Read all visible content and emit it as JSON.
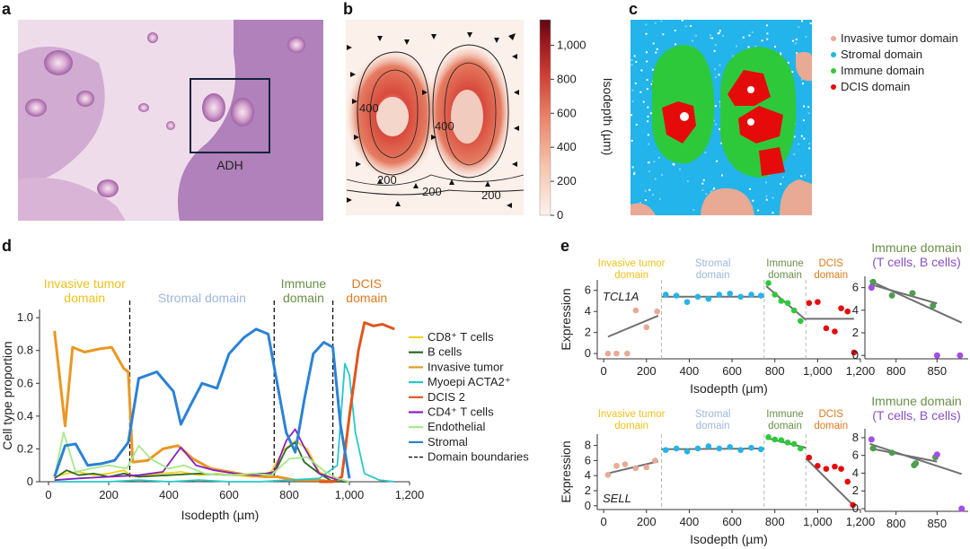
{
  "panel_labels": {
    "a": "a",
    "b": "b",
    "c": "c",
    "d": "d",
    "e": "e"
  },
  "panel_a": {
    "roi_label": "ADH"
  },
  "panel_b": {
    "colorbar_label": "Isodepth (µm)",
    "colorbar_ticks": [
      "1,000",
      "800",
      "600",
      "400",
      "200",
      "0"
    ],
    "contour_labels": [
      "200",
      "400",
      "200",
      "400",
      "200"
    ],
    "colorscale": [
      "#fbe8df",
      "#f4b6a0",
      "#e4705a",
      "#c4342c",
      "#8b1a1a",
      "#5a0f12"
    ]
  },
  "panel_c": {
    "legend": [
      {
        "label": "Invasive tumor domain",
        "color": "#e8a995"
      },
      {
        "label": "Stromal domain",
        "color": "#22b4ea"
      },
      {
        "label": "Immune domain",
        "color": "#2ec93a"
      },
      {
        "label": "DCIS domain",
        "color": "#e60b0b"
      }
    ]
  },
  "chart_data": [
    {
      "type": "line",
      "id": "d",
      "xlabel": "Isodepth (µm)",
      "ylabel": "Cell type proportion",
      "xlim": [
        -30,
        1200
      ],
      "ylim": [
        0,
        1.05
      ],
      "xticks": [
        "0",
        "200",
        "400",
        "600",
        "800",
        "1,000",
        "1,200"
      ],
      "yticks": [
        "0",
        "0.2",
        "0.4",
        "0.6",
        "0.8",
        "1.0"
      ],
      "domain_boundaries": [
        270,
        750,
        945
      ],
      "domains": [
        {
          "label": [
            "Invasive tumor",
            "domain"
          ],
          "color": "#efc21a"
        },
        {
          "label": [
            "Stromal domain"
          ],
          "color": "#9db7dc"
        },
        {
          "label": [
            "Immune",
            "domain"
          ],
          "color": "#6a8f47"
        },
        {
          "label": [
            "DCIS",
            "domain"
          ],
          "color": "#e07a1c"
        }
      ],
      "series": [
        {
          "name": "CD8⁺ T cells",
          "color": "#f3d117",
          "x": [
            20,
            60,
            100,
            150,
            200,
            250,
            280,
            320,
            380,
            440,
            500,
            560,
            620,
            680,
            740,
            780,
            820,
            860,
            900,
            945,
            1000
          ],
          "y": [
            0.03,
            0.05,
            0.06,
            0.04,
            0.05,
            0.07,
            0.03,
            0.04,
            0.05,
            0.06,
            0.04,
            0.05,
            0.04,
            0.03,
            0.06,
            0.19,
            0.25,
            0.2,
            0.06,
            0.02,
            0.0
          ]
        },
        {
          "name": "B cells",
          "color": "#2c6b23",
          "x": [
            20,
            60,
            100,
            150,
            200,
            250,
            300,
            400,
            500,
            600,
            700,
            750,
            790,
            820,
            850,
            900,
            945,
            1000
          ],
          "y": [
            0.02,
            0.07,
            0.04,
            0.05,
            0.03,
            0.05,
            0.03,
            0.04,
            0.05,
            0.04,
            0.05,
            0.05,
            0.2,
            0.24,
            0.12,
            0.05,
            0.0,
            0.0
          ]
        },
        {
          "name": "Invasive tumor",
          "color": "#eb9722",
          "x": [
            20,
            55,
            80,
            120,
            170,
            210,
            250,
            265,
            280,
            330,
            380,
            430,
            480,
            540,
            600,
            660,
            720,
            760,
            820,
            900,
            945
          ],
          "y": [
            0.92,
            0.34,
            0.82,
            0.79,
            0.81,
            0.82,
            0.69,
            0.67,
            0.12,
            0.13,
            0.2,
            0.22,
            0.14,
            0.08,
            0.06,
            0.04,
            0.03,
            0.03,
            0.01,
            0.01,
            0.0
          ]
        },
        {
          "name": "Myoepi ACTA2⁺",
          "color": "#26c8c8",
          "x": [
            20,
            100,
            200,
            300,
            400,
            500,
            600,
            700,
            800,
            900,
            960,
            985,
            1000,
            1020,
            1050,
            1100,
            1150
          ],
          "y": [
            0.0,
            0.0,
            0.0,
            0.01,
            0.0,
            0.01,
            0.0,
            0.0,
            0.01,
            0.02,
            0.1,
            0.72,
            0.65,
            0.3,
            0.05,
            0.01,
            0.0
          ]
        },
        {
          "name": "DCIS 2",
          "color": "#e0561b",
          "x": [
            900,
            945,
            975,
            1000,
            1030,
            1050,
            1080,
            1110,
            1150
          ],
          "y": [
            0.0,
            0.0,
            0.03,
            0.4,
            0.8,
            0.97,
            0.95,
            0.96,
            0.93
          ]
        },
        {
          "name": "CD4⁺ T cells",
          "color": "#8a1fc0",
          "x": [
            20,
            100,
            200,
            300,
            380,
            440,
            490,
            550,
            620,
            700,
            750,
            790,
            820,
            850,
            900,
            945,
            1000
          ],
          "y": [
            0.01,
            0.02,
            0.03,
            0.04,
            0.06,
            0.21,
            0.1,
            0.07,
            0.05,
            0.04,
            0.06,
            0.25,
            0.32,
            0.21,
            0.05,
            0.02,
            0.0
          ]
        },
        {
          "name": "Endothelial",
          "color": "#a6e88a",
          "x": [
            20,
            50,
            90,
            140,
            200,
            260,
            300,
            340,
            400,
            450,
            520,
            600,
            680,
            740,
            800,
            860,
            920,
            960,
            1000
          ],
          "y": [
            0.03,
            0.3,
            0.06,
            0.08,
            0.1,
            0.08,
            0.22,
            0.14,
            0.08,
            0.1,
            0.05,
            0.04,
            0.05,
            0.04,
            0.14,
            0.15,
            0.06,
            0.02,
            0.0
          ]
        },
        {
          "name": "Stromal",
          "color": "#2a82d6",
          "x": [
            20,
            55,
            90,
            130,
            175,
            220,
            265,
            300,
            360,
            415,
            440,
            470,
            510,
            560,
            600,
            650,
            690,
            730,
            760,
            790,
            820,
            850,
            880,
            915,
            945,
            970,
            1000
          ],
          "y": [
            0.03,
            0.22,
            0.23,
            0.1,
            0.11,
            0.13,
            0.24,
            0.63,
            0.67,
            0.55,
            0.35,
            0.46,
            0.6,
            0.57,
            0.78,
            0.88,
            0.93,
            0.9,
            0.6,
            0.3,
            0.18,
            0.5,
            0.78,
            0.85,
            0.82,
            0.35,
            0.02
          ]
        }
      ],
      "boundary_legend": "Domain boundaries"
    },
    {
      "type": "scatter",
      "id": "e-top",
      "gene": "TCL1A",
      "xlabel": "Isodepth (µm)",
      "ylabel": "Expression",
      "xlim": [
        -30,
        1200
      ],
      "ylim": [
        -0.5,
        7
      ],
      "xticks": [
        "0",
        "200",
        "400",
        "600",
        "800",
        "1,000",
        "1,200"
      ],
      "yticks": [
        "0",
        "2",
        "4",
        "6"
      ],
      "domain_boundaries": [
        270,
        750,
        945
      ],
      "domains": [
        {
          "label": [
            "Invasive tumor",
            "domain"
          ],
          "color": "#efc21a"
        },
        {
          "label": [
            "Stromal",
            "domain"
          ],
          "color": "#9db7dc"
        },
        {
          "label": [
            "Immune",
            "domain"
          ],
          "color": "#6a8f47"
        },
        {
          "label": [
            "DCIS",
            "domain"
          ],
          "color": "#e07a1c"
        }
      ],
      "points": [
        {
          "x": 20,
          "y": 0,
          "c": "#e8a995"
        },
        {
          "x": 60,
          "y": 0,
          "c": "#e8a995"
        },
        {
          "x": 110,
          "y": 0,
          "c": "#e8a995"
        },
        {
          "x": 150,
          "y": 4.1,
          "c": "#e8a995"
        },
        {
          "x": 200,
          "y": 2.5,
          "c": "#e8a995"
        },
        {
          "x": 250,
          "y": 4.0,
          "c": "#e8a995"
        },
        {
          "x": 290,
          "y": 5.6,
          "c": "#22b4ea"
        },
        {
          "x": 340,
          "y": 5.5,
          "c": "#22b4ea"
        },
        {
          "x": 390,
          "y": 4.9,
          "c": "#22b4ea"
        },
        {
          "x": 440,
          "y": 5.4,
          "c": "#22b4ea"
        },
        {
          "x": 490,
          "y": 5.2,
          "c": "#22b4ea"
        },
        {
          "x": 540,
          "y": 5.6,
          "c": "#22b4ea"
        },
        {
          "x": 590,
          "y": 5.7,
          "c": "#22b4ea"
        },
        {
          "x": 640,
          "y": 5.4,
          "c": "#22b4ea"
        },
        {
          "x": 690,
          "y": 5.6,
          "c": "#22b4ea"
        },
        {
          "x": 735,
          "y": 5.5,
          "c": "#22b4ea"
        },
        {
          "x": 770,
          "y": 6.7,
          "c": "#2ec93a"
        },
        {
          "x": 800,
          "y": 5.6,
          "c": "#2ec93a"
        },
        {
          "x": 830,
          "y": 5.0,
          "c": "#2ec93a"
        },
        {
          "x": 860,
          "y": 4.8,
          "c": "#2ec93a"
        },
        {
          "x": 890,
          "y": 4.1,
          "c": "#2ec93a"
        },
        {
          "x": 920,
          "y": 3.1,
          "c": "#2ec93a"
        },
        {
          "x": 960,
          "y": 4.8,
          "c": "#e60b0b"
        },
        {
          "x": 1000,
          "y": 4.9,
          "c": "#e60b0b"
        },
        {
          "x": 1040,
          "y": 2.4,
          "c": "#e60b0b"
        },
        {
          "x": 1080,
          "y": 2.1,
          "c": "#e60b0b"
        },
        {
          "x": 1110,
          "y": 4.3,
          "c": "#e60b0b"
        },
        {
          "x": 1140,
          "y": 4.0,
          "c": "#e60b0b"
        },
        {
          "x": 1170,
          "y": 0.1,
          "c": "#e60b0b"
        }
      ],
      "fit": [
        [
          [
            20,
            1.6
          ],
          [
            255,
            3.6
          ]
        ],
        [
          [
            270,
            5.4
          ],
          [
            750,
            5.4
          ]
        ],
        [
          [
            760,
            6.4
          ],
          [
            945,
            3.2
          ]
        ],
        [
          [
            945,
            3.3
          ],
          [
            1170,
            3.3
          ]
        ]
      ]
    },
    {
      "type": "scatter",
      "id": "e-bottom",
      "gene": "SELL",
      "xlabel": "Isodepth (µm)",
      "ylabel": "Expression",
      "xlim": [
        -30,
        1200
      ],
      "ylim": [
        -0.5,
        9.5
      ],
      "xticks": [
        "0",
        "200",
        "400",
        "600",
        "800",
        "1,000",
        "1,200"
      ],
      "yticks": [
        "0",
        "2",
        "4",
        "6",
        "8"
      ],
      "domain_boundaries": [
        270,
        750,
        945
      ],
      "domains": [
        {
          "label": [
            "Invasive tumor",
            "domain"
          ],
          "color": "#efc21a"
        },
        {
          "label": [
            "Stromal",
            "domain"
          ],
          "color": "#9db7dc"
        },
        {
          "label": [
            "Immune",
            "domain"
          ],
          "color": "#6a8f47"
        },
        {
          "label": [
            "DCIS",
            "domain"
          ],
          "color": "#e07a1c"
        }
      ],
      "points": [
        {
          "x": 20,
          "y": 4.1,
          "c": "#e8a995"
        },
        {
          "x": 60,
          "y": 5.3,
          "c": "#e8a995"
        },
        {
          "x": 100,
          "y": 5.5,
          "c": "#e8a995"
        },
        {
          "x": 150,
          "y": 5.0,
          "c": "#e8a995"
        },
        {
          "x": 200,
          "y": 5.1,
          "c": "#e8a995"
        },
        {
          "x": 240,
          "y": 6.0,
          "c": "#e8a995"
        },
        {
          "x": 290,
          "y": 7.4,
          "c": "#22b4ea"
        },
        {
          "x": 340,
          "y": 7.6,
          "c": "#22b4ea"
        },
        {
          "x": 390,
          "y": 7.2,
          "c": "#22b4ea"
        },
        {
          "x": 440,
          "y": 7.6,
          "c": "#22b4ea"
        },
        {
          "x": 490,
          "y": 7.9,
          "c": "#22b4ea"
        },
        {
          "x": 540,
          "y": 7.6,
          "c": "#22b4ea"
        },
        {
          "x": 590,
          "y": 7.8,
          "c": "#22b4ea"
        },
        {
          "x": 640,
          "y": 7.4,
          "c": "#22b4ea"
        },
        {
          "x": 690,
          "y": 7.7,
          "c": "#22b4ea"
        },
        {
          "x": 735,
          "y": 7.5,
          "c": "#22b4ea"
        },
        {
          "x": 770,
          "y": 9.1,
          "c": "#2ec93a"
        },
        {
          "x": 800,
          "y": 8.8,
          "c": "#2ec93a"
        },
        {
          "x": 830,
          "y": 8.7,
          "c": "#2ec93a"
        },
        {
          "x": 860,
          "y": 8.4,
          "c": "#2ec93a"
        },
        {
          "x": 890,
          "y": 8.2,
          "c": "#2ec93a"
        },
        {
          "x": 920,
          "y": 7.6,
          "c": "#2ec93a"
        },
        {
          "x": 960,
          "y": 6.4,
          "c": "#e60b0b"
        },
        {
          "x": 1000,
          "y": 5.3,
          "c": "#e60b0b"
        },
        {
          "x": 1040,
          "y": 4.9,
          "c": "#e60b0b"
        },
        {
          "x": 1080,
          "y": 5.2,
          "c": "#e60b0b"
        },
        {
          "x": 1110,
          "y": 4.9,
          "c": "#e60b0b"
        },
        {
          "x": 1140,
          "y": 3.2,
          "c": "#e60b0b"
        },
        {
          "x": 1165,
          "y": 0.1,
          "c": "#e60b0b"
        }
      ],
      "fit": [
        [
          [
            20,
            4.3
          ],
          [
            255,
            5.9
          ]
        ],
        [
          [
            270,
            7.5
          ],
          [
            750,
            7.6
          ]
        ],
        [
          [
            760,
            9.0
          ],
          [
            945,
            7.7
          ]
        ],
        [
          [
            945,
            6.3
          ],
          [
            1165,
            0.1
          ]
        ]
      ]
    },
    {
      "type": "scatter",
      "id": "e-top-right",
      "title": [
        "Immune domain",
        "(T cells, B cells)"
      ],
      "xlim": [
        762,
        888
      ],
      "ylim": [
        -0.3,
        7
      ],
      "xticks": [
        "800",
        "850"
      ],
      "yticks": [
        "0",
        "2",
        "4",
        "6"
      ],
      "points": [
        {
          "x": 770,
          "y": 6.0,
          "c": "#a44de8"
        },
        {
          "x": 772,
          "y": 6.5,
          "c": "#4f9d4f"
        },
        {
          "x": 795,
          "y": 5.3,
          "c": "#4f9d4f"
        },
        {
          "x": 820,
          "y": 5.5,
          "c": "#4f9d4f"
        },
        {
          "x": 845,
          "y": 4.4,
          "c": "#4f9d4f"
        },
        {
          "x": 850,
          "y": 0,
          "c": "#a44de8"
        },
        {
          "x": 878,
          "y": 0,
          "c": "#a44de8"
        }
      ],
      "fit": [
        [
          [
            768,
            6.6
          ],
          [
            880,
            2.9
          ]
        ],
        [
          [
            768,
            6.3
          ],
          [
            850,
            4.6
          ]
        ]
      ]
    },
    {
      "type": "scatter",
      "id": "e-bottom-right",
      "title": [
        "Immune domain",
        "(T cells, B cells)"
      ],
      "xlim": [
        762,
        888
      ],
      "ylim": [
        -0.3,
        9
      ],
      "xticks": [
        "800",
        "850"
      ],
      "yticks": [
        "0",
        "2",
        "4",
        "6",
        "8"
      ],
      "points": [
        {
          "x": 770,
          "y": 7.8,
          "c": "#a44de8"
        },
        {
          "x": 772,
          "y": 6.8,
          "c": "#4f9d4f"
        },
        {
          "x": 795,
          "y": 6.3,
          "c": "#4f9d4f"
        },
        {
          "x": 822,
          "y": 4.9,
          "c": "#4f9d4f"
        },
        {
          "x": 824,
          "y": 5.1,
          "c": "#4f9d4f"
        },
        {
          "x": 848,
          "y": 5.8,
          "c": "#4f9d4f"
        },
        {
          "x": 850,
          "y": 6.1,
          "c": "#a44de8"
        },
        {
          "x": 880,
          "y": 0,
          "c": "#a44de8"
        }
      ],
      "fit": [
        [
          [
            768,
            7.3
          ],
          [
            880,
            3.9
          ]
        ],
        [
          [
            768,
            6.8
          ],
          [
            850,
            5.3
          ]
        ]
      ]
    }
  ]
}
